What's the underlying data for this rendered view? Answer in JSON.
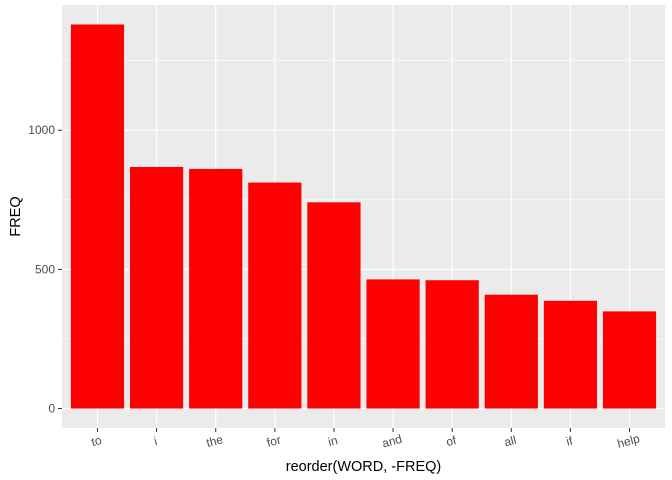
{
  "chart_data": {
    "type": "bar",
    "title": "",
    "xlabel": "reorder(WORD, -FREQ)",
    "ylabel": "FREQ",
    "categories": [
      "to",
      "i",
      "the",
      "for",
      "in",
      "and",
      "of",
      "all",
      "if",
      "help"
    ],
    "values": [
      1380,
      868,
      861,
      812,
      741,
      464,
      461,
      409,
      387,
      349
    ],
    "ylim": [
      -70,
      1450
    ],
    "yticks": [
      0,
      500,
      1000
    ],
    "ytick_labels": [
      "0",
      "500",
      "1000"
    ],
    "grid": true,
    "legend": "none",
    "bar_color": "#ff0000",
    "panel_color": "#ebebeb",
    "grid_color": "#ffffff"
  }
}
